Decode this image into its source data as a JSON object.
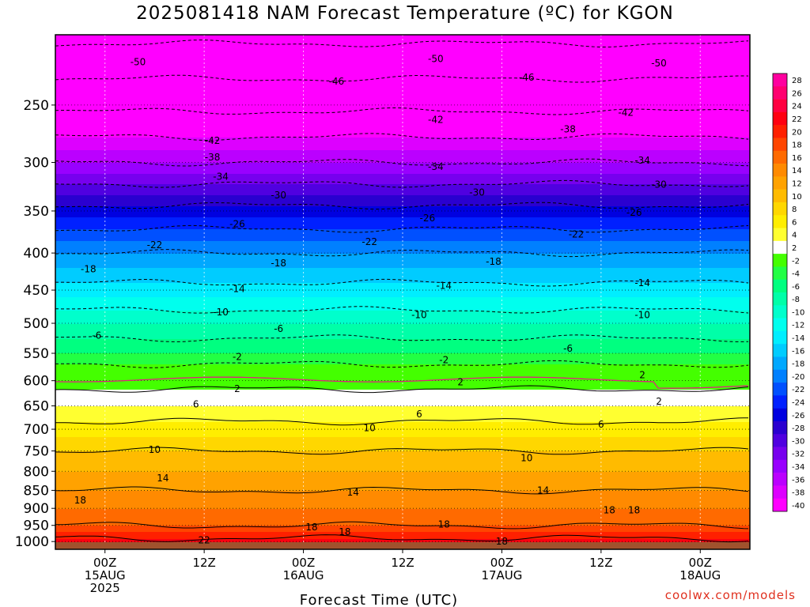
{
  "title": "2025081418 NAM Forecast Temperature (ºC) for KGON",
  "credit": "coolwx.com/models",
  "chart_data": {
    "type": "heatmap",
    "title": "2025081418 NAM Forecast Temperature (ºC) for KGON",
    "xlabel": "Forecast Time (UTC)",
    "ylabel": "",
    "x_ticks": [
      {
        "h": 6,
        "lines": [
          "00Z",
          "15AUG",
          "2025"
        ]
      },
      {
        "h": 18,
        "lines": [
          "12Z"
        ]
      },
      {
        "h": 30,
        "lines": [
          "00Z",
          "16AUG"
        ]
      },
      {
        "h": 42,
        "lines": [
          "12Z"
        ]
      },
      {
        "h": 54,
        "lines": [
          "00Z",
          "17AUG"
        ]
      },
      {
        "h": 66,
        "lines": [
          "12Z"
        ]
      },
      {
        "h": 78,
        "lines": [
          "00Z",
          "18AUG"
        ]
      }
    ],
    "x_range_hours_after_init": [
      0,
      84
    ],
    "y_ticks": [
      250,
      300,
      350,
      400,
      450,
      500,
      550,
      600,
      650,
      700,
      750,
      800,
      850,
      900,
      950,
      1000
    ],
    "y_axis": "pressure (hPa), log scale, 1000 at bottom",
    "ylim": [
      1025,
      200
    ],
    "colorbar_levels": [
      28,
      26,
      24,
      22,
      20,
      18,
      16,
      14,
      12,
      10,
      8,
      6,
      4,
      2,
      -2,
      -4,
      -6,
      -8,
      -10,
      -12,
      -14,
      -16,
      -18,
      -20,
      -22,
      -24,
      -26,
      -28,
      -30,
      -32,
      -34,
      -36,
      -38,
      -40
    ],
    "colorbar_colors": [
      "#ff009f",
      "#ff0070",
      "#ff0040",
      "#ff0010",
      "#ff2000",
      "#ff4500",
      "#ff6a00",
      "#ff8a00",
      "#ffa200",
      "#ffbb00",
      "#ffd700",
      "#ffee00",
      "#ffff30",
      "#ffffff",
      "#44ff00",
      "#22ff44",
      "#00ff80",
      "#00ffa8",
      "#00ffcc",
      "#00ffee",
      "#00eeff",
      "#00ccff",
      "#00a8ff",
      "#0080ff",
      "#0050ff",
      "#0020ff",
      "#0000e0",
      "#2a00d0",
      "#5000e0",
      "#7700ee",
      "#9900ff",
      "#bb00ff",
      "#dd00ff",
      "#ff00ff"
    ],
    "freezing_level_hpa": 570,
    "profile_samples": [
      {
        "p": 1000,
        "t": 23
      },
      {
        "p": 950,
        "t": 18
      },
      {
        "p": 900,
        "t": 16
      },
      {
        "p": 850,
        "t": 14
      },
      {
        "p": 800,
        "t": 12
      },
      {
        "p": 750,
        "t": 10
      },
      {
        "p": 700,
        "t": 7
      },
      {
        "p": 650,
        "t": 4
      },
      {
        "p": 600,
        "t": 1
      },
      {
        "p": 550,
        "t": -4
      },
      {
        "p": 500,
        "t": -8
      },
      {
        "p": 450,
        "t": -13
      },
      {
        "p": 400,
        "t": -18
      },
      {
        "p": 350,
        "t": -25
      },
      {
        "p": 300,
        "t": -34
      },
      {
        "p": 250,
        "t": -43
      },
      {
        "p": 200,
        "t": -51
      }
    ],
    "contour_labels": [
      {
        "v": "50",
        "h": 10,
        "p": 218
      },
      {
        "v": "46",
        "h": 34,
        "p": 232
      },
      {
        "v": "50",
        "h": 46,
        "p": 216
      },
      {
        "v": "46",
        "h": 57,
        "p": 229
      },
      {
        "v": "50",
        "h": 73,
        "p": 219
      },
      {
        "v": "42",
        "h": 19,
        "p": 280
      },
      {
        "v": "42",
        "h": 46,
        "p": 262
      },
      {
        "v": "38",
        "h": 62,
        "p": 270
      },
      {
        "v": "42",
        "h": 69,
        "p": 256
      },
      {
        "v": "38",
        "h": 19,
        "p": 295
      },
      {
        "v": "34",
        "h": 20,
        "p": 314
      },
      {
        "v": "34",
        "h": 46,
        "p": 304
      },
      {
        "v": "34",
        "h": 71,
        "p": 298
      },
      {
        "v": "30",
        "h": 27,
        "p": 333
      },
      {
        "v": "30",
        "h": 51,
        "p": 330
      },
      {
        "v": "30",
        "h": 73,
        "p": 322
      },
      {
        "v": "26",
        "h": 22,
        "p": 365
      },
      {
        "v": "26",
        "h": 45,
        "p": 358
      },
      {
        "v": "26",
        "h": 70,
        "p": 352
      },
      {
        "v": "22",
        "h": 12,
        "p": 390
      },
      {
        "v": "22",
        "h": 38,
        "p": 386
      },
      {
        "v": "22",
        "h": 63,
        "p": 377
      },
      {
        "v": "18",
        "h": 4,
        "p": 421
      },
      {
        "v": "18",
        "h": 27,
        "p": 413
      },
      {
        "v": "18",
        "h": 53,
        "p": 411
      },
      {
        "v": "14",
        "h": 22,
        "p": 448
      },
      {
        "v": "14",
        "h": 47,
        "p": 444
      },
      {
        "v": "14",
        "h": 71,
        "p": 440
      },
      {
        "v": "10",
        "h": 20,
        "p": 483
      },
      {
        "v": "10",
        "h": 44,
        "p": 487
      },
      {
        "v": "10",
        "h": 71,
        "p": 487
      },
      {
        "v": "6",
        "h": 5,
        "p": 520
      },
      {
        "v": "6",
        "h": 27,
        "p": 509
      },
      {
        "v": "6",
        "h": 62,
        "p": 542
      },
      {
        "v": "2",
        "h": 22,
        "p": 556
      },
      {
        "v": "2",
        "h": 47,
        "p": 562
      },
      {
        "v": "2",
        "h": 71,
        "p": 589
      },
      {
        "v": "2",
        "h": 22,
        "p": 616
      },
      {
        "v": "2",
        "h": 49,
        "p": 603
      },
      {
        "v": "2",
        "h": 73,
        "p": 641
      },
      {
        "v": "6",
        "h": 17,
        "p": 647
      },
      {
        "v": "6",
        "h": 44,
        "p": 667
      },
      {
        "v": "6",
        "h": 66,
        "p": 689
      },
      {
        "v": "10",
        "h": 38,
        "p": 697
      },
      {
        "v": "10",
        "h": 12,
        "p": 747
      },
      {
        "v": "10",
        "h": 57,
        "p": 767
      },
      {
        "v": "14",
        "h": 13,
        "p": 818
      },
      {
        "v": "14",
        "h": 36,
        "p": 856
      },
      {
        "v": "14",
        "h": 59,
        "p": 850
      },
      {
        "v": "18",
        "h": 3,
        "p": 877
      },
      {
        "v": "18",
        "h": 67,
        "p": 905
      },
      {
        "v": "18",
        "h": 70,
        "p": 905
      },
      {
        "v": "18",
        "h": 31,
        "p": 955
      },
      {
        "v": "18",
        "h": 35,
        "p": 970
      },
      {
        "v": "18",
        "h": 47,
        "p": 947
      },
      {
        "v": "18",
        "h": 54,
        "p": 1000
      },
      {
        "v": "22",
        "h": 18,
        "p": 996
      }
    ]
  }
}
